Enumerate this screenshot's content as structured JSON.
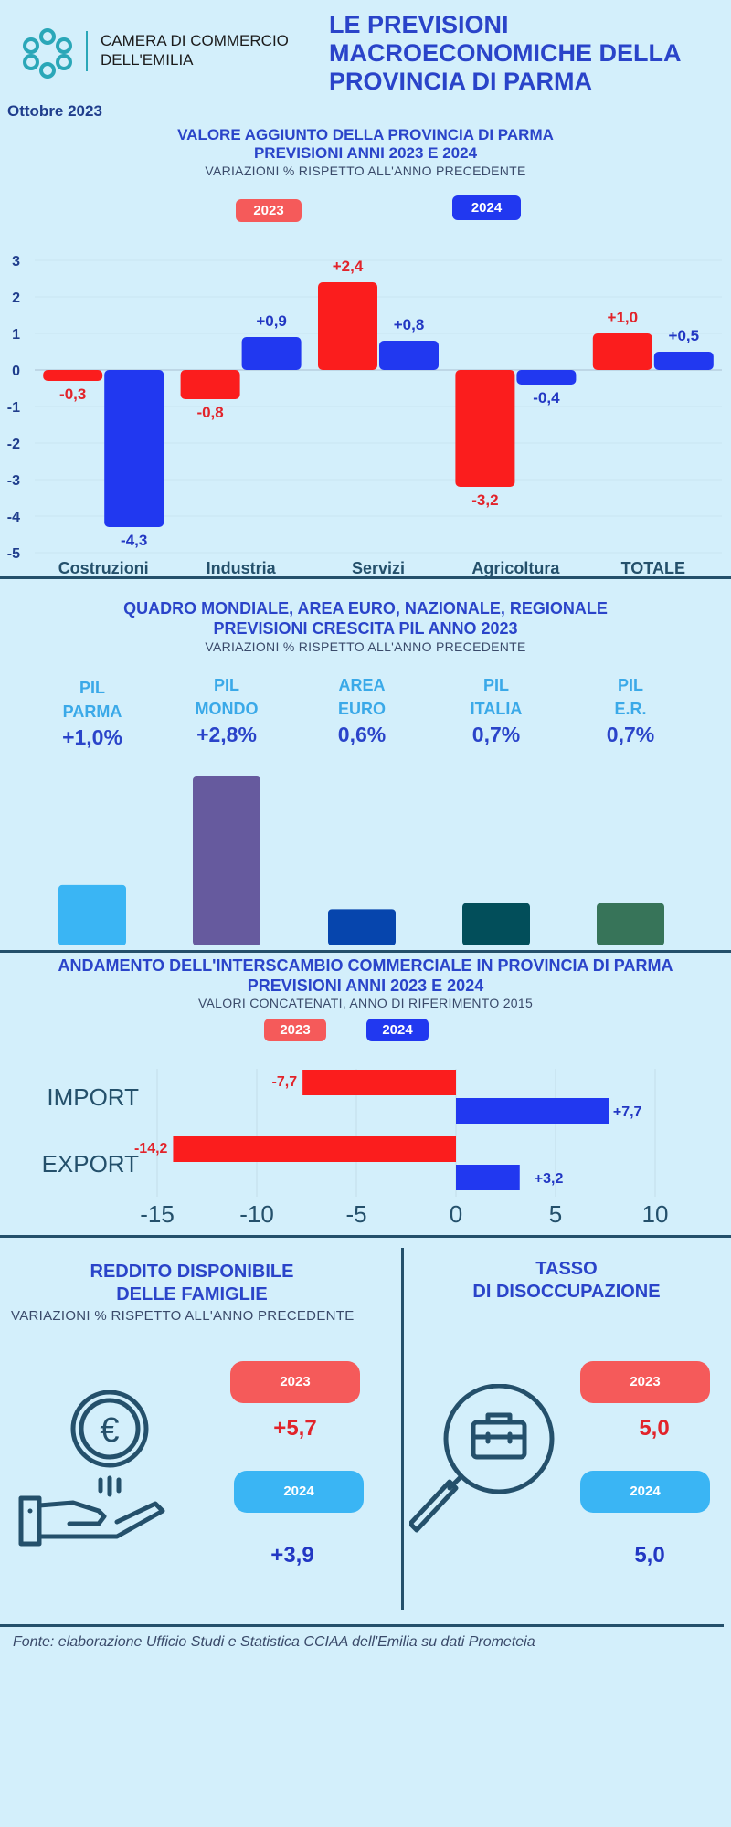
{
  "header": {
    "org_line1": "CAMERA DI COMMERCIO",
    "org_line2": "DELL'EMILIA",
    "title_lines": [
      "LE PREVISIONI",
      "MACROECONOMICHE DELLA",
      "PROVINCIA DI PARMA"
    ],
    "date": "Ottobre 2023"
  },
  "section1": {
    "title_lines": [
      "VALORE AGGIUNTO DELLA PROVINCIA DI PARMA",
      "PREVISIONI ANNI 2023 E 2024"
    ],
    "subtitle": "VARIAZIONI % RISPETTO ALL'ANNO PRECEDENTE",
    "legend": [
      "2023",
      "2024"
    ]
  },
  "section2": {
    "title_lines": [
      "QUADRO MONDIALE, AREA EURO, NAZIONALE, REGIONALE",
      "PREVISIONI CRESCITA PIL ANNO 2023"
    ],
    "subtitle": "VARIAZIONI % RISPETTO ALL'ANNO PRECEDENTE",
    "items": [
      {
        "l1": "PIL",
        "l2": "PARMA",
        "value_label": "+1,0%"
      },
      {
        "l1": "PIL",
        "l2": "MONDO",
        "value_label": "+2,8%"
      },
      {
        "l1": "AREA",
        "l2": "EURO",
        "value_label": "0,6%"
      },
      {
        "l1": "PIL",
        "l2": "ITALIA",
        "value_label": "0,7%"
      },
      {
        "l1": "PIL",
        "l2": "E.R.",
        "value_label": "0,7%"
      }
    ]
  },
  "section3": {
    "title_lines": [
      "ANDAMENTO DELL'INTERSCAMBIO COMMERCIALE IN PROVINCIA DI PARMA",
      "PREVISIONI ANNI  2023 E 2024"
    ],
    "subtitle": "VALORI CONCATENATI, ANNO DI RIFERIMENTO 2015",
    "legend": [
      "2023",
      "2024"
    ]
  },
  "section4": {
    "left_title": [
      "REDDITO DISPONIBILE",
      "DELLE FAMIGLIE"
    ],
    "left_subtitle": "VARIAZIONI % RISPETTO ALL'ANNO PRECEDENTE",
    "left_pills": [
      "2023",
      "2024"
    ],
    "left_values": [
      "+5,7",
      "+3,9"
    ],
    "right_title": [
      "TASSO",
      "DI DISOCCUPAZIONE"
    ],
    "right_pills": [
      "2023",
      "2024"
    ],
    "right_values": [
      "5,0",
      "5,0"
    ],
    "euro_symbol": "€"
  },
  "footer": {
    "source": "Fonte: elaborazione Ufficio Studi e Statistica CCIAA dell'Emilia su dati Prometeia"
  },
  "colors": {
    "red": "#fb1d1d",
    "blue": "#2138f0",
    "navy": "#24506b",
    "pil": [
      "#3ab5f4",
      "#665a9e",
      "#0645ad",
      "#024e5a",
      "#377459"
    ]
  },
  "chart_data": [
    {
      "type": "bar",
      "categories": [
        "Costruzioni",
        "Industria",
        "Servizi",
        "Agricoltura",
        "TOTALE"
      ],
      "series": [
        {
          "name": "2023",
          "values": [
            -0.3,
            -0.8,
            2.4,
            -3.2,
            1.0
          ],
          "labels": [
            "-0,3",
            "-0,8",
            "+2,4",
            "-3,2",
            "+1,0"
          ]
        },
        {
          "name": "2024",
          "values": [
            -4.3,
            0.9,
            0.8,
            -0.4,
            0.5
          ],
          "labels": [
            "-4,3",
            "+0,9",
            "+0,8",
            "-0,4",
            "+0,5"
          ]
        }
      ],
      "ylim": [
        -5,
        3
      ],
      "yticks": [
        "3",
        "2",
        "1",
        "0",
        "-1",
        "-2",
        "-3",
        "-4",
        "-5"
      ],
      "grid": true
    },
    {
      "type": "bar",
      "categories": [
        "PIL PARMA",
        "PIL MONDO",
        "AREA EURO",
        "PIL ITALIA",
        "PIL E.R."
      ],
      "values": [
        1.0,
        2.8,
        0.6,
        0.7,
        0.7
      ]
    },
    {
      "type": "bar",
      "orientation": "horizontal",
      "categories": [
        "IMPORT",
        "EXPORT"
      ],
      "series": [
        {
          "name": "2023",
          "values": [
            -7.7,
            -14.2
          ],
          "labels": [
            "-7,7",
            "-14,2"
          ]
        },
        {
          "name": "2024",
          "values": [
            7.7,
            3.2
          ],
          "labels": [
            "+7,7",
            "+3,2"
          ]
        }
      ],
      "xlim": [
        -15,
        10
      ],
      "xticks": [
        "-15",
        "-10",
        "-5",
        "0",
        "5",
        "10"
      ],
      "grid": true
    }
  ]
}
